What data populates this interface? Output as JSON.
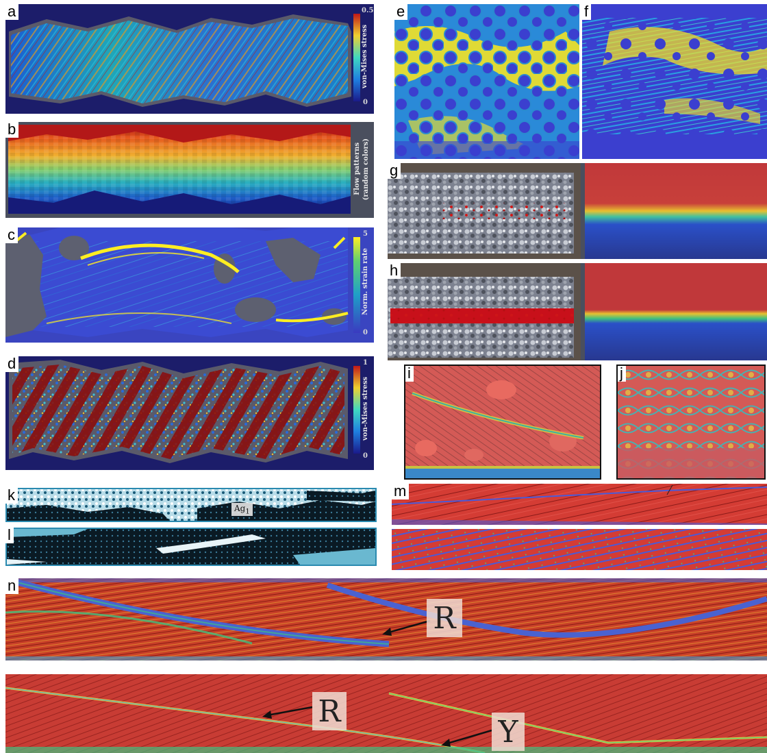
{
  "panels": {
    "a": {
      "label": "a",
      "colorbar_max": "0.5",
      "colorbar_min": "0",
      "colorbar_title": "von-Mises stress"
    },
    "b": {
      "label": "b",
      "colorbar_title_1": "Flow patterns",
      "colorbar_title_2": "(random colors)"
    },
    "c": {
      "label": "c",
      "colorbar_max": "5",
      "colorbar_min": "0",
      "colorbar_title": "Norm. strain rate"
    },
    "d": {
      "label": "d",
      "colorbar_max": "1",
      "colorbar_min": "0",
      "colorbar_title": "von-Mises stress"
    },
    "e": {
      "label": "e"
    },
    "f": {
      "label": "f"
    },
    "g": {
      "label": "g"
    },
    "h": {
      "label": "h"
    },
    "i": {
      "label": "i"
    },
    "j": {
      "label": "j"
    },
    "k": {
      "label": "k",
      "annotation": "Ag",
      "annotation_sub": "1"
    },
    "l": {
      "label": "l"
    },
    "m": {
      "label": "m"
    },
    "n": {
      "label": "n",
      "callout_top": "R",
      "callout_bottom_1": "R",
      "callout_bottom_2": "Y"
    }
  },
  "colors": {
    "navy": "#1a1a6e",
    "field_blue": "#3a49c8",
    "red": "#c0392b",
    "yellow": "#ffee22",
    "grey_rock": "#5b5e6b",
    "frame": "#4a4f5e"
  }
}
